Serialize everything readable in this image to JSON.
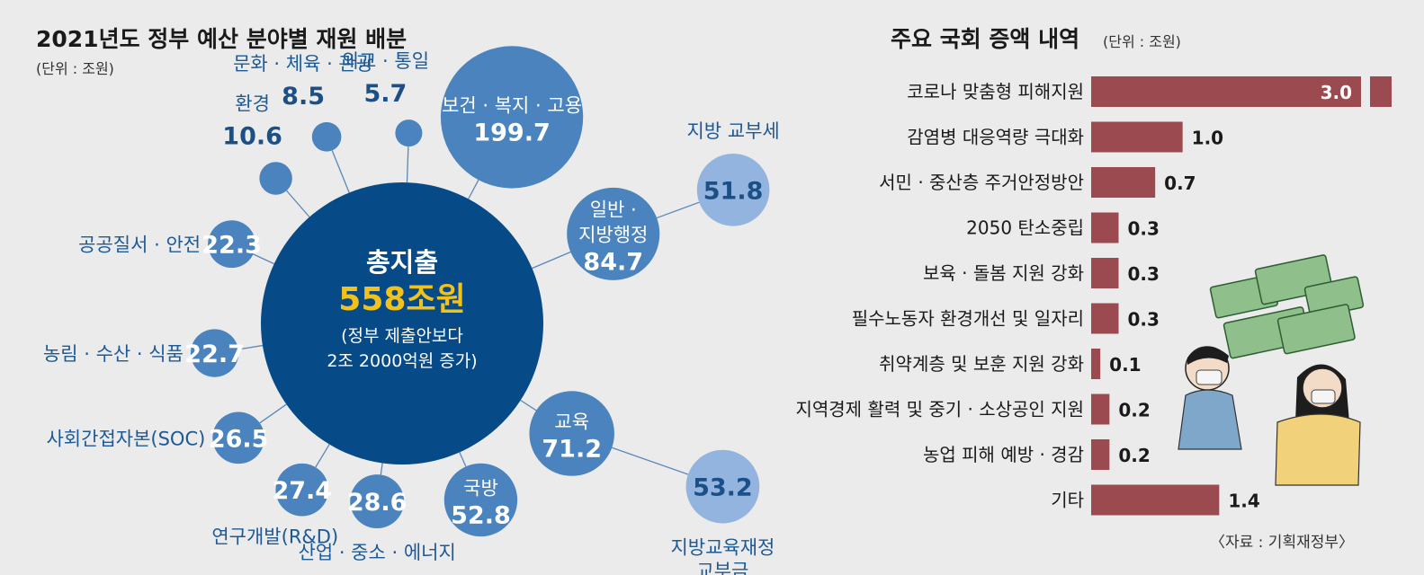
{
  "chart_data": [
    {
      "type": "bubble",
      "title": "2021년도 정부 예산 분야별 재원 배분",
      "unit": "(단위 : 조원)",
      "center": {
        "line1": "총지출",
        "value": "558조원",
        "note_line1": "(정부 제출안보다",
        "note_line2": "2조 2000억원 증가)"
      },
      "items": [
        {
          "label": "보건 · 복지 · 고용",
          "value": 199.7,
          "color": "#4a83bd"
        },
        {
          "label": "외교 · 통일",
          "value": 5.7,
          "color": "#4a83bd"
        },
        {
          "label": "문화 · 체육 · 관광",
          "value": 8.5,
          "color": "#4a83bd"
        },
        {
          "label": "환경",
          "value": 10.6,
          "color": "#4a83bd"
        },
        {
          "label": "공공질서 · 안전",
          "value": 22.3,
          "color": "#4a83bd"
        },
        {
          "label": "농림 · 수산 · 식품",
          "value": 22.7,
          "color": "#4a83bd"
        },
        {
          "label": "사회간접자본(SOC)",
          "value": 26.5,
          "color": "#4a83bd"
        },
        {
          "label": "연구개발(R&D)",
          "value": 27.4,
          "color": "#4a83bd"
        },
        {
          "label": "산업 · 중소 · 에너지",
          "value": 28.6,
          "color": "#4a83bd"
        },
        {
          "label": "국방",
          "value": 52.8,
          "color": "#4a83bd"
        },
        {
          "label": "교육",
          "value": 71.2,
          "color": "#4a83bd"
        },
        {
          "label": "지방교육재정 교부금",
          "value": 53.2,
          "color": "#93b4de"
        },
        {
          "label": "일반 · 지방행정",
          "value": 84.7,
          "color": "#4a83bd"
        },
        {
          "label": "지방 교부세",
          "value": 51.8,
          "color": "#93b4de"
        }
      ]
    },
    {
      "type": "bar",
      "orientation": "horizontal",
      "title": "주요 국회 증액 내역",
      "unit": "(단위 : 조원)",
      "color": "#9b4a4f",
      "categories": [
        "코로나 맞춤형 피해지원",
        "감염병 대응역량 극대화",
        "서민 · 중산층 주거안정방안",
        "2050 탄소중립",
        "보육 · 돌봄 지원 강화",
        "필수노동자 환경개선 및 일자리",
        "취약계층 및 보훈 지원 강화",
        "지역경제 활력 및 중기 · 소상공인 지원",
        "농업 피해 예방 · 경감",
        "기타"
      ],
      "values": [
        3.0,
        1.0,
        0.7,
        0.3,
        0.3,
        0.3,
        0.1,
        0.2,
        0.2,
        1.4
      ],
      "value_labels": [
        "3.0",
        "1.0",
        "0.7",
        "0.3",
        "0.3",
        "0.3",
        "0.1",
        "0.2",
        "0.2",
        "1.4"
      ],
      "source": "〈자료 : 기획재정부〉"
    }
  ],
  "colors": {
    "center_circle": "#064b87",
    "bubble": "#4a83bd",
    "bubble_light": "#93b4de",
    "bar": "#9b4a4f",
    "value_highlight": "#f2c21a",
    "background": "#ebebeb"
  }
}
